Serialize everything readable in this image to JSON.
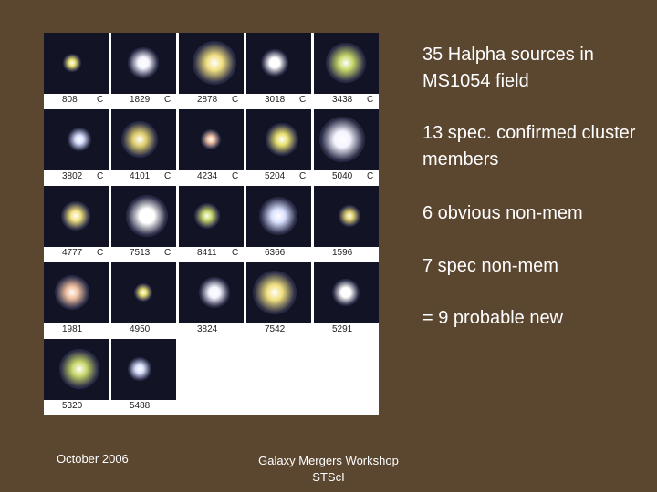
{
  "grid": {
    "items": [
      {
        "id": "808",
        "flag": "C"
      },
      {
        "id": "1829",
        "flag": "C"
      },
      {
        "id": "2878",
        "flag": "C"
      },
      {
        "id": "3018",
        "flag": "C"
      },
      {
        "id": "3438",
        "flag": "C"
      },
      {
        "id": "3802",
        "flag": "C"
      },
      {
        "id": "4101",
        "flag": "C"
      },
      {
        "id": "4234",
        "flag": "C"
      },
      {
        "id": "5204",
        "flag": "C"
      },
      {
        "id": "5040",
        "flag": "C"
      },
      {
        "id": "4777",
        "flag": "C"
      },
      {
        "id": "7513",
        "flag": "C"
      },
      {
        "id": "8411",
        "flag": "C"
      },
      {
        "id": "6366"
      },
      {
        "id": "1596"
      },
      {
        "id": "1981"
      },
      {
        "id": "4950"
      },
      {
        "id": "3824"
      },
      {
        "id": "7542"
      },
      {
        "id": "5291"
      },
      {
        "id": "5320"
      },
      {
        "id": "5488"
      }
    ]
  },
  "notes": [
    "35 Halpha sources in MS1054 field",
    "13 spec. confirmed cluster members",
    "6 obvious non-mem",
    "7 spec non-mem",
    "= 9 probable new"
  ],
  "footer": {
    "date": "October 2006",
    "event": "Galaxy Mergers Workshop",
    "place": "STScI"
  }
}
